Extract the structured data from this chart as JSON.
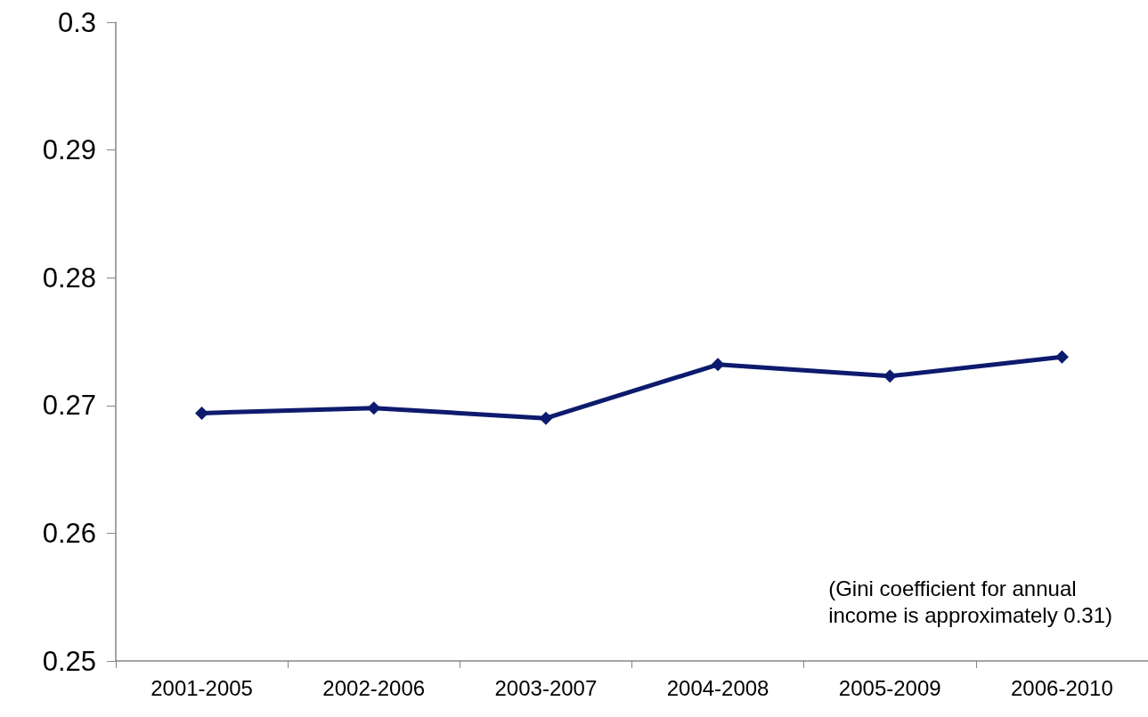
{
  "chart_data": {
    "type": "line",
    "categories": [
      "2001-2005",
      "2002-2006",
      "2003-2007",
      "2004-2008",
      "2005-2009",
      "2006-2010"
    ],
    "series": [
      {
        "color": "#0d1b6e",
        "values": [
          0.2694,
          0.2698,
          0.269,
          0.2732,
          0.2723,
          0.2738
        ]
      }
    ],
    "ylim": [
      0.25,
      0.3
    ],
    "yticks": [
      0.25,
      0.26,
      0.27,
      0.28,
      0.29,
      0.3
    ],
    "grid": false,
    "marker": "diamond",
    "line_style": "solid",
    "annotations": [
      "(Gini coefficient for annual\nincome is approximately 0.31)"
    ]
  }
}
